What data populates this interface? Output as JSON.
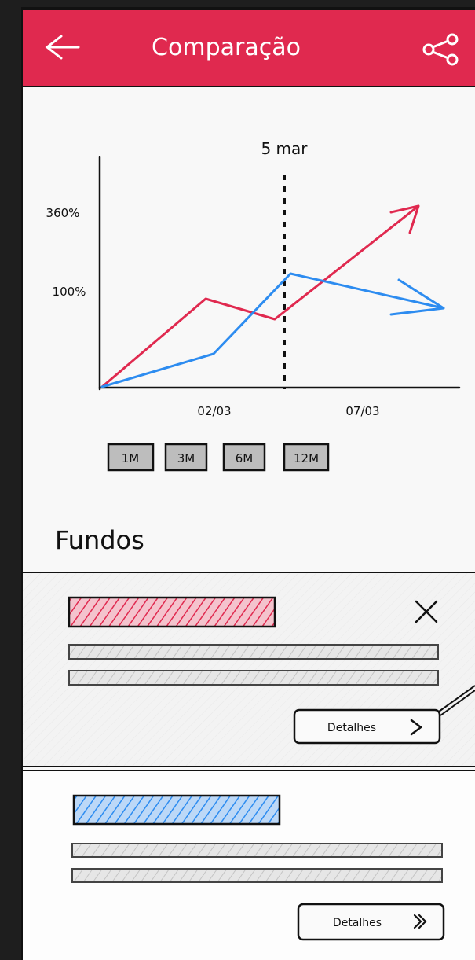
{
  "header": {
    "title": "Comparação"
  },
  "chart": {
    "marker": "5 mar",
    "y_labels": [
      "360%",
      "100%"
    ],
    "x_labels": [
      "02/03",
      "07/03"
    ]
  },
  "periods": [
    "1M",
    "3M",
    "6M",
    "12M"
  ],
  "section_title": "Fundos",
  "cards": [
    {
      "button": "Detalhes"
    },
    {
      "button": "Detalhes"
    }
  ]
}
